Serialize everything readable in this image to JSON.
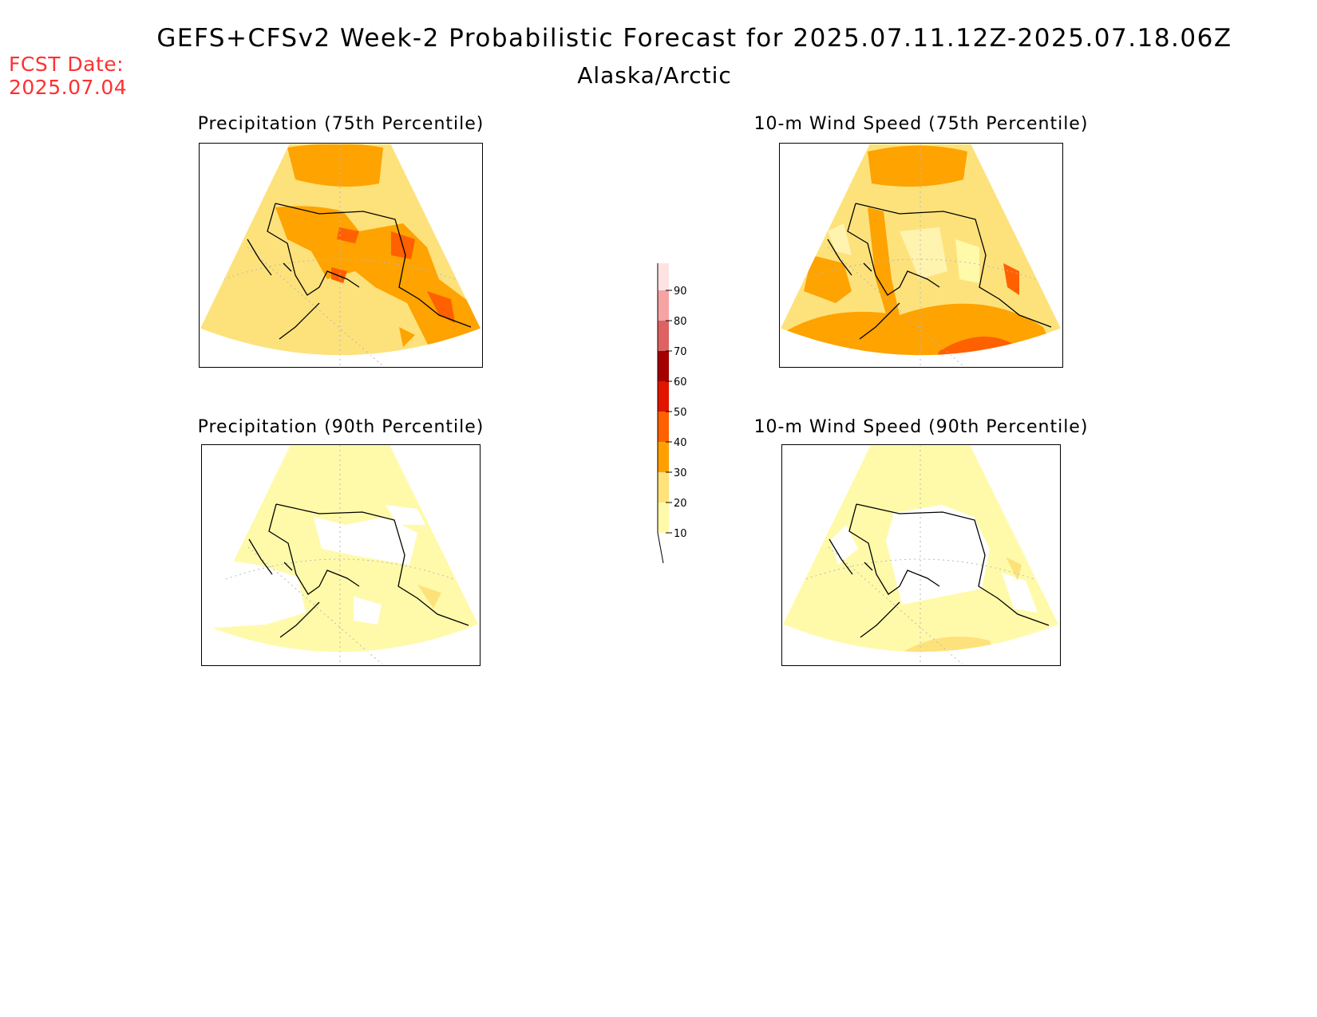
{
  "header": {
    "title": "GEFS+CFSv2 Week-2 Probabilistic Forecast for 2025.07.11.12Z-2025.07.18.06Z",
    "subtitle": "Alaska/Arctic",
    "fcst_label": "FCST Date:",
    "fcst_date": "2025.07.04"
  },
  "panels": [
    {
      "title": "Precipitation (75th Percentile)",
      "dominant_category": "20-30"
    },
    {
      "title": "10-m Wind Speed (75th Percentile)",
      "dominant_category": "20-30"
    },
    {
      "title": "Precipitation (90th Percentile)",
      "dominant_category": "10-20"
    },
    {
      "title": "10-m Wind Speed (90th Percentile)",
      "dominant_category": "10-20"
    }
  ],
  "colorbar": {
    "levels": [
      "10",
      "20",
      "30",
      "40",
      "50",
      "60",
      "70",
      "80",
      "90"
    ],
    "colors": [
      "#fffaaa",
      "#ffe27a",
      "#ffa000",
      "#ff6000",
      "#e11400",
      "#a50000",
      "#df6262",
      "#f5a3a3",
      "#ffe3e3"
    ]
  },
  "colors": {
    "c10": "#fffaaa",
    "c20": "#fde27c",
    "c30": "#fea300",
    "c40": "#ff6000",
    "c50": "#e11400",
    "fcst_date": "#ff3030"
  }
}
